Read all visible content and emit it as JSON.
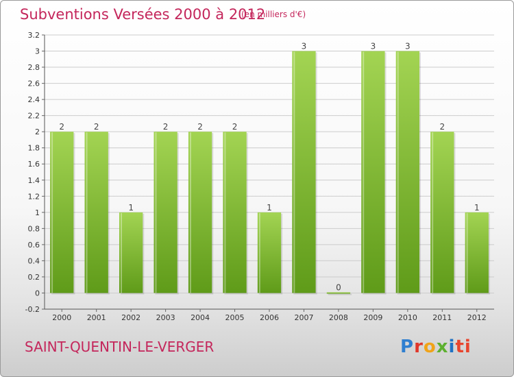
{
  "header": {
    "title": "Subventions Versées 2000 à 2012",
    "unit": "(en milliers d'€)"
  },
  "footer": {
    "commune": "SAINT-QUENTIN-LE-VERGER",
    "logo": "Proxiti"
  },
  "colors": {
    "title": "#c4265b",
    "bar_light": "#9ccf4a",
    "bar_dark": "#5e9a18",
    "grid": "#cccccc"
  },
  "chart_data": {
    "type": "bar",
    "title": "Subventions Versées 2000 à 2012",
    "categories": [
      "2000",
      "2001",
      "2002",
      "2003",
      "2004",
      "2005",
      "2006",
      "2007",
      "2008",
      "2009",
      "2010",
      "2011",
      "2012"
    ],
    "values": [
      2,
      2,
      1,
      2,
      2,
      2,
      1,
      3,
      0,
      3,
      3,
      2,
      1
    ],
    "data_labels": [
      "2",
      "2",
      "1",
      "2",
      "2",
      "2",
      "1",
      "3",
      "0",
      "3",
      "3",
      "2",
      "1"
    ],
    "yticks": [
      -0.2,
      0,
      0.2,
      0.4,
      0.6,
      0.8,
      1,
      1.2,
      1.4,
      1.6,
      1.8,
      2,
      2.2,
      2.4,
      2.6,
      2.8,
      3,
      3.2
    ],
    "ytick_labels": [
      "-0.2",
      "0",
      "0.2",
      "0.4",
      "0.6",
      "0.8",
      "1",
      "1.2",
      "1.4",
      "1.6",
      "1.8",
      "2",
      "2.2",
      "2.4",
      "2.6",
      "2.8",
      "3",
      "3.2"
    ],
    "ylim": [
      -0.2,
      3.2
    ],
    "grid": true
  }
}
